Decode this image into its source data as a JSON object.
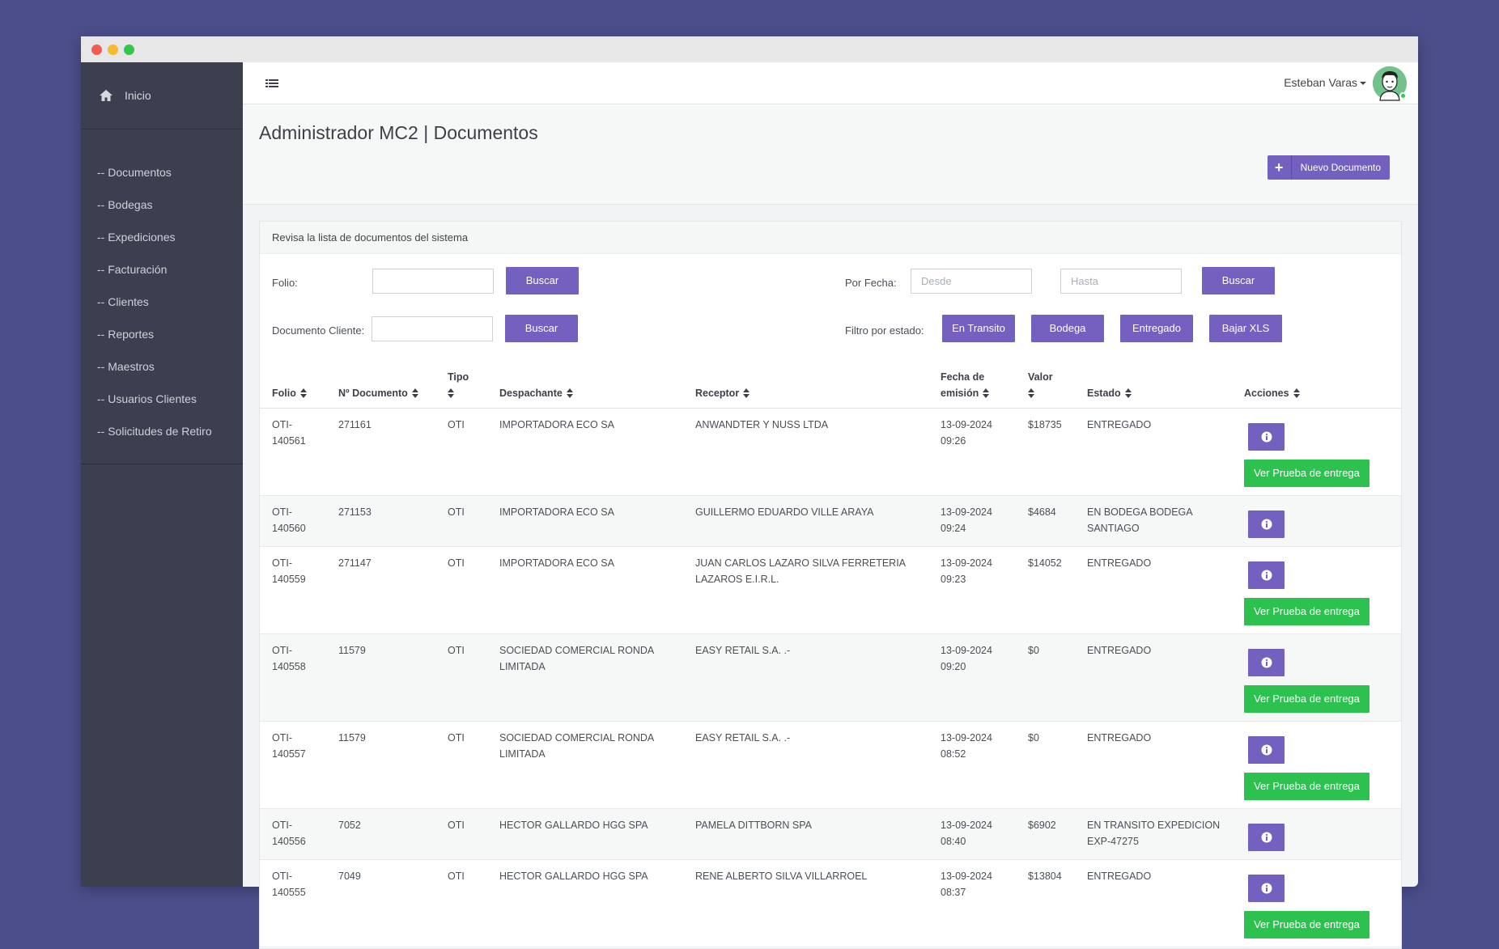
{
  "sidebar": {
    "home_label": "Inicio",
    "items": [
      {
        "label": "-- Documentos"
      },
      {
        "label": "-- Bodegas"
      },
      {
        "label": "-- Expediciones"
      },
      {
        "label": "-- Facturación"
      },
      {
        "label": "-- Clientes"
      },
      {
        "label": "-- Reportes"
      },
      {
        "label": "-- Maestros"
      },
      {
        "label": "-- Usuarios Clientes"
      },
      {
        "label": "-- Solicitudes de Retiro"
      }
    ]
  },
  "topbar": {
    "user_name": "Esteban Varas"
  },
  "header": {
    "title": "Administrador MC2 | Documentos",
    "new_doc_label": "Nuevo Documento"
  },
  "panel": {
    "heading": "Revisa la lista de documentos del sistema",
    "filters": {
      "folio_label": "Folio:",
      "folio_value": "",
      "doc_cliente_label": "Documento Cliente:",
      "doc_cliente_value": "",
      "search_label": "Buscar",
      "fecha_label": "Por Fecha:",
      "desde_placeholder": "Desde",
      "hasta_placeholder": "Hasta",
      "estado_label": "Filtro por estado:",
      "estado_buttons": [
        "En Transito",
        "Bodega",
        "Entregado",
        "Bajar XLS"
      ]
    }
  },
  "table": {
    "columns": [
      "Folio",
      "Nº Documento",
      "Tipo",
      "Despachante",
      "Receptor",
      "Fecha de emisión",
      "Valor",
      "Estado",
      "Acciones"
    ],
    "proof_label": "Ver Prueba de entrega",
    "rows": [
      {
        "folio": "OTI-140561",
        "doc": "271161",
        "tipo": "OTI",
        "despachante": "IMPORTADORA ECO SA",
        "receptor": "ANWANDTER Y NUSS LTDA",
        "fecha": "13-09-2024 09:26",
        "valor": "$18735",
        "estado": "ENTREGADO",
        "proof": true
      },
      {
        "folio": "OTI-140560",
        "doc": "271153",
        "tipo": "OTI",
        "despachante": "IMPORTADORA ECO SA",
        "receptor": "GUILLERMO EDUARDO VILLE ARAYA",
        "fecha": "13-09-2024 09:24",
        "valor": "$4684",
        "estado": "EN BODEGA BODEGA SANTIAGO",
        "proof": false
      },
      {
        "folio": "OTI-140559",
        "doc": "271147",
        "tipo": "OTI",
        "despachante": "IMPORTADORA ECO SA",
        "receptor": "JUAN CARLOS LAZARO SILVA FERRETERIA LAZAROS E.I.R.L.",
        "fecha": "13-09-2024 09:23",
        "valor": "$14052",
        "estado": "ENTREGADO",
        "proof": true
      },
      {
        "folio": "OTI-140558",
        "doc": "11579",
        "tipo": "OTI",
        "despachante": "SOCIEDAD COMERCIAL RONDA LIMITADA",
        "receptor": "EASY RETAIL S.A. .-",
        "fecha": "13-09-2024 09:20",
        "valor": "$0",
        "estado": "ENTREGADO",
        "proof": true
      },
      {
        "folio": "OTI-140557",
        "doc": "11579",
        "tipo": "OTI",
        "despachante": "SOCIEDAD COMERCIAL RONDA LIMITADA",
        "receptor": "EASY RETAIL S.A. .-",
        "fecha": "13-09-2024 08:52",
        "valor": "$0",
        "estado": "ENTREGADO",
        "proof": true
      },
      {
        "folio": "OTI-140556",
        "doc": "7052",
        "tipo": "OTI",
        "despachante": "HECTOR GALLARDO HGG SPA",
        "receptor": "PAMELA DITTBORN SPA",
        "fecha": "13-09-2024 08:40",
        "valor": "$6902",
        "estado": "EN TRANSITO EXPEDICION EXP-47275",
        "proof": false
      },
      {
        "folio": "OTI-140555",
        "doc": "7049",
        "tipo": "OTI",
        "despachante": "HECTOR GALLARDO HGG SPA",
        "receptor": "RENE ALBERTO SILVA VILLARROEL",
        "fecha": "13-09-2024 08:37",
        "valor": "$13804",
        "estado": "ENTREGADO",
        "proof": true
      }
    ]
  },
  "colors": {
    "accent": "#7461bf",
    "success": "#2dc24f",
    "sidebar": "#3b3f50",
    "background": "#4b4e8a"
  }
}
